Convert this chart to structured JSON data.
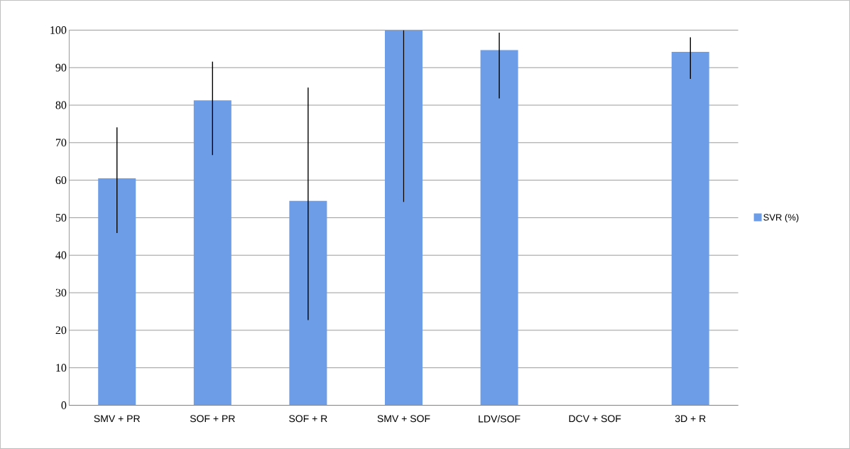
{
  "chart_data": {
    "type": "bar",
    "categories": [
      "SMV + PR",
      "SOF + PR",
      "SOF + R",
      "SMV + SOF",
      "LDV/SOF",
      "DCV + SOF",
      "3D + R"
    ],
    "series": [
      {
        "name": "SVR (%)",
        "color": "#6d9de6",
        "values": [
          60.5,
          81.3,
          54.5,
          100,
          94.7,
          null,
          94.2
        ],
        "errors": [
          [
            45.9,
            74.1
          ],
          [
            66.7,
            91.6
          ],
          [
            22.7,
            84.7
          ],
          [
            54.2,
            100
          ],
          [
            81.8,
            99.3
          ],
          null,
          [
            87.0,
            98.1
          ]
        ]
      }
    ],
    "ylim": [
      0,
      100
    ],
    "yticks": [
      0,
      10,
      20,
      30,
      40,
      50,
      60,
      70,
      80,
      90,
      100
    ],
    "grid": "y",
    "legend": "right"
  }
}
